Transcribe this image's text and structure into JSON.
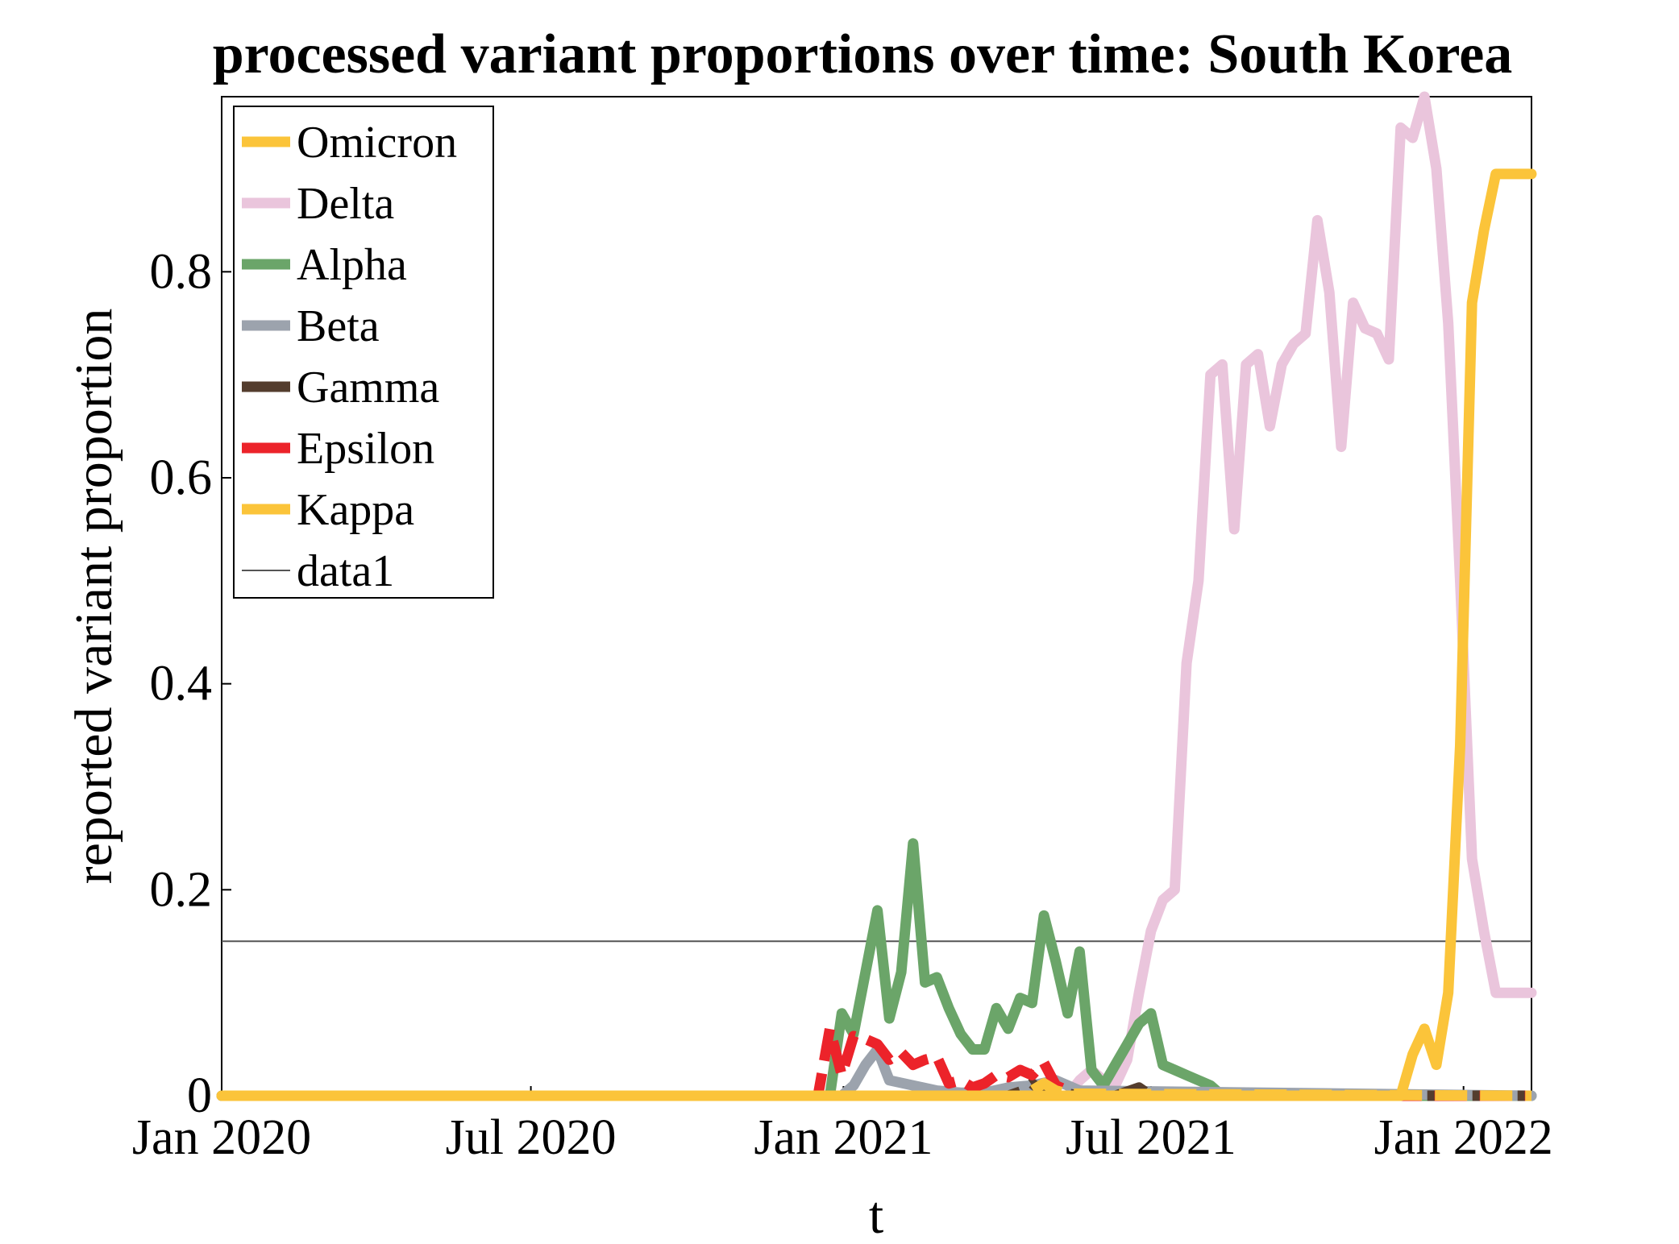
{
  "chart_data": {
    "type": "line",
    "title": "processed variant proportions over time: South Korea",
    "xlabel": "t",
    "ylabel": "reported variant proportion",
    "x_ticks": [
      "Jan 2020",
      "Jul 2020",
      "Jan 2021",
      "Jul 2021",
      "Jan 2022"
    ],
    "x_tick_dates": [
      "2020-01-01",
      "2020-07-01",
      "2021-01-01",
      "2021-07-01",
      "2022-01-01"
    ],
    "x_range": [
      "2020-01-01",
      "2022-02-10"
    ],
    "y_ticks": [
      "0",
      "0.2",
      "0.4",
      "0.6",
      "0.8"
    ],
    "y_tick_values": [
      0,
      0.2,
      0.4,
      0.6,
      0.8
    ],
    "ylim": [
      0,
      0.97
    ],
    "legend_position": "top-left",
    "series": [
      {
        "name": "Omicron",
        "color": "#FBC43A",
        "style": "solid",
        "x": [
          "2020-01-01",
          "2021-11-18",
          "2021-11-25",
          "2021-12-02",
          "2021-12-09",
          "2021-12-16",
          "2021-12-23",
          "2021-12-30",
          "2022-01-06",
          "2022-01-13",
          "2022-01-20",
          "2022-02-10"
        ],
        "y": [
          0,
          0,
          0,
          0.04,
          0.065,
          0.03,
          0.1,
          0.34,
          0.77,
          0.84,
          0.895,
          0.895
        ]
      },
      {
        "name": "Delta",
        "color": "#EAC5DC",
        "style": "solid",
        "x": [
          "2020-01-01",
          "2021-05-13",
          "2021-05-20",
          "2021-05-27",
          "2021-06-03",
          "2021-06-10",
          "2021-06-17",
          "2021-06-24",
          "2021-07-01",
          "2021-07-08",
          "2021-07-15",
          "2021-07-22",
          "2021-07-29",
          "2021-08-05",
          "2021-08-12",
          "2021-08-19",
          "2021-08-26",
          "2021-09-02",
          "2021-09-09",
          "2021-09-16",
          "2021-09-23",
          "2021-09-30",
          "2021-10-07",
          "2021-10-14",
          "2021-10-21",
          "2021-10-28",
          "2021-11-04",
          "2021-11-11",
          "2021-11-18",
          "2021-11-25",
          "2021-12-02",
          "2021-12-09",
          "2021-12-16",
          "2021-12-23",
          "2021-12-30",
          "2022-01-06",
          "2022-01-13",
          "2022-01-20",
          "2022-01-27",
          "2022-02-10"
        ],
        "y": [
          0,
          0,
          0.015,
          0.025,
          0.015,
          0.01,
          0.035,
          0.1,
          0.16,
          0.19,
          0.2,
          0.42,
          0.5,
          0.7,
          0.71,
          0.55,
          0.71,
          0.72,
          0.65,
          0.71,
          0.73,
          0.74,
          0.85,
          0.78,
          0.63,
          0.77,
          0.745,
          0.74,
          0.715,
          0.94,
          0.93,
          0.97,
          0.9,
          0.75,
          0.5,
          0.23,
          0.16,
          0.1,
          0.1,
          0.1
        ]
      },
      {
        "name": "Alpha",
        "color": "#6BA569",
        "style": "solid",
        "x": [
          "2020-01-01",
          "2020-12-24",
          "2020-12-31",
          "2021-01-07",
          "2021-01-14",
          "2021-01-21",
          "2021-01-28",
          "2021-02-04",
          "2021-02-11",
          "2021-02-18",
          "2021-02-25",
          "2021-03-04",
          "2021-03-11",
          "2021-03-18",
          "2021-03-25",
          "2021-04-01",
          "2021-04-08",
          "2021-04-15",
          "2021-04-22",
          "2021-04-29",
          "2021-05-06",
          "2021-05-13",
          "2021-05-20",
          "2021-05-27",
          "2021-06-03",
          "2021-06-10",
          "2021-06-17",
          "2021-06-24",
          "2021-07-01",
          "2021-07-08",
          "2021-07-15",
          "2021-07-22",
          "2021-07-29",
          "2021-08-05",
          "2021-08-12",
          "2022-02-10"
        ],
        "y": [
          0,
          0,
          0.08,
          0.06,
          0.12,
          0.18,
          0.075,
          0.12,
          0.245,
          0.11,
          0.115,
          0.085,
          0.06,
          0.045,
          0.045,
          0.085,
          0.065,
          0.095,
          0.09,
          0.175,
          0.13,
          0.08,
          0.14,
          0.025,
          0.01,
          0.03,
          0.05,
          0.07,
          0.08,
          0.03,
          0.025,
          0.02,
          0.015,
          0.01,
          0,
          0
        ]
      },
      {
        "name": "Beta",
        "color": "#9CA3AD",
        "style": "solid",
        "x": [
          "2020-01-01",
          "2020-12-31",
          "2021-01-07",
          "2021-01-14",
          "2021-01-21",
          "2021-01-28",
          "2021-02-11",
          "2021-02-25",
          "2021-03-11",
          "2021-03-25",
          "2021-04-08",
          "2021-04-22",
          "2021-05-06",
          "2021-05-20",
          "2022-02-10"
        ],
        "y": [
          0,
          0,
          0.01,
          0.03,
          0.045,
          0.015,
          0.01,
          0.005,
          0.003,
          0.003,
          0.008,
          0.01,
          0.015,
          0.005,
          0
        ]
      },
      {
        "name": "Gamma",
        "color": "#543D2E",
        "style": "dashed",
        "x": [
          "2020-01-01",
          "2021-04-08",
          "2021-04-15",
          "2021-04-22",
          "2021-04-29",
          "2021-05-06",
          "2021-05-13",
          "2021-05-20",
          "2021-06-10",
          "2021-06-17",
          "2021-06-24",
          "2021-07-01",
          "2022-02-10"
        ],
        "y": [
          0,
          0,
          0.004,
          0.012,
          0.003,
          0.008,
          0.002,
          0,
          0,
          0.004,
          0.008,
          0,
          0
        ]
      },
      {
        "name": "Epsilon",
        "color": "#EC232A",
        "style": "dashed",
        "x": [
          "2020-01-01",
          "2020-12-17",
          "2020-12-24",
          "2020-12-31",
          "2021-01-07",
          "2021-01-14",
          "2021-01-21",
          "2021-01-28",
          "2021-02-04",
          "2021-02-11",
          "2021-02-18",
          "2021-02-25",
          "2021-03-04",
          "2021-03-11",
          "2021-03-18",
          "2021-03-25",
          "2021-04-01",
          "2021-04-08",
          "2021-04-15",
          "2021-04-22",
          "2021-04-29",
          "2021-05-06",
          "2021-05-13",
          "2021-05-20",
          "2022-02-10"
        ],
        "y": [
          0,
          0,
          0.065,
          0.02,
          0.058,
          0.055,
          0.05,
          0.035,
          0.042,
          0.03,
          0.035,
          0.038,
          0.012,
          0.015,
          0.008,
          0.012,
          0.02,
          0.018,
          0.025,
          0.02,
          0.032,
          0.01,
          0.005,
          0,
          0
        ]
      },
      {
        "name": "Kappa",
        "color": "#FBC43A",
        "style": "dashed",
        "x": [
          "2020-01-01",
          "2021-04-15",
          "2021-04-22",
          "2021-04-29",
          "2021-05-06",
          "2021-05-13",
          "2022-02-10"
        ],
        "y": [
          0,
          0,
          0.005,
          0.012,
          0.005,
          0.002,
          0
        ]
      },
      {
        "name": "data1",
        "color": "#555555",
        "style": "thin",
        "x": [
          "2020-01-01",
          "2022-02-10"
        ],
        "y": [
          0.15,
          0.15
        ]
      }
    ]
  }
}
